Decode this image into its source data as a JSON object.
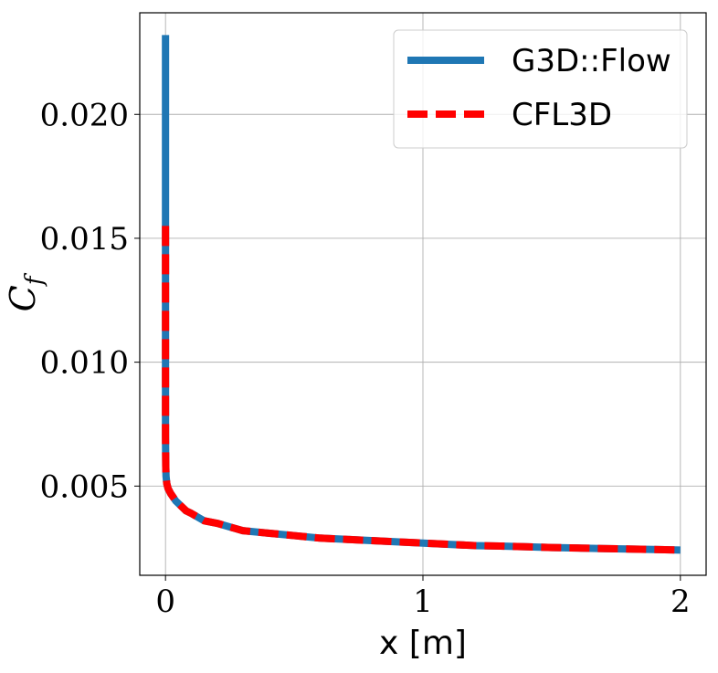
{
  "chart_data": {
    "type": "line",
    "xlabel": "x [m]",
    "ylabel": "C",
    "ylabel_sub": "f",
    "xlim": [
      -0.1,
      2.1
    ],
    "ylim": [
      0.0014,
      0.0241
    ],
    "grid": true,
    "legend_position": "top-right",
    "x_ticks": [
      0,
      1,
      2
    ],
    "x_tick_labels": [
      "0",
      "1",
      "2"
    ],
    "y_ticks": [
      0.005,
      0.01,
      0.015,
      0.02
    ],
    "y_tick_labels": [
      "0.005",
      "0.010",
      "0.015",
      "0.020"
    ],
    "series": [
      {
        "name": "G3D::Flow",
        "color": "#1f77b4",
        "style": "solid",
        "x": [
          0,
          0,
          0,
          0,
          0,
          0.001,
          0.002,
          0.005,
          0.01,
          0.02,
          0.04,
          0.06,
          0.08,
          0.1,
          0.15,
          0.2,
          0.3,
          0.4,
          0.5,
          0.6,
          0.7,
          0.8,
          0.9,
          1.0,
          1.1,
          1.2,
          1.3,
          1.4,
          1.5,
          1.6,
          1.7,
          1.8,
          1.9,
          2.0
        ],
        "y": [
          0.0232,
          0.018,
          0.014,
          0.01,
          0.007,
          0.0058,
          0.0054,
          0.0051,
          0.0049,
          0.0047,
          0.0044,
          0.0042,
          0.004,
          0.0039,
          0.0036,
          0.0035,
          0.0032,
          0.0031,
          0.003,
          0.0029,
          0.00285,
          0.0028,
          0.00275,
          0.0027,
          0.00265,
          0.0026,
          0.00258,
          0.00255,
          0.00252,
          0.0025,
          0.00248,
          0.00246,
          0.00244,
          0.00242
        ]
      },
      {
        "name": "CFL3D",
        "color": "#ff0000",
        "style": "dashed",
        "x": [
          0,
          0,
          0,
          0.001,
          0.002,
          0.005,
          0.01,
          0.02,
          0.04,
          0.06,
          0.08,
          0.1,
          0.15,
          0.2,
          0.3,
          0.4,
          0.5,
          0.6,
          0.7,
          0.8,
          0.9,
          1.0,
          1.1,
          1.2,
          1.3,
          1.4,
          1.5,
          1.6,
          1.7,
          1.8,
          1.9,
          2.0
        ],
        "y": [
          0.0155,
          0.01,
          0.007,
          0.0058,
          0.0054,
          0.0051,
          0.0049,
          0.0047,
          0.0044,
          0.0042,
          0.004,
          0.0039,
          0.0036,
          0.0035,
          0.0032,
          0.0031,
          0.003,
          0.0029,
          0.00285,
          0.0028,
          0.00275,
          0.0027,
          0.00265,
          0.0026,
          0.00258,
          0.00255,
          0.00252,
          0.0025,
          0.00248,
          0.00246,
          0.00244,
          0.00242
        ]
      }
    ]
  }
}
